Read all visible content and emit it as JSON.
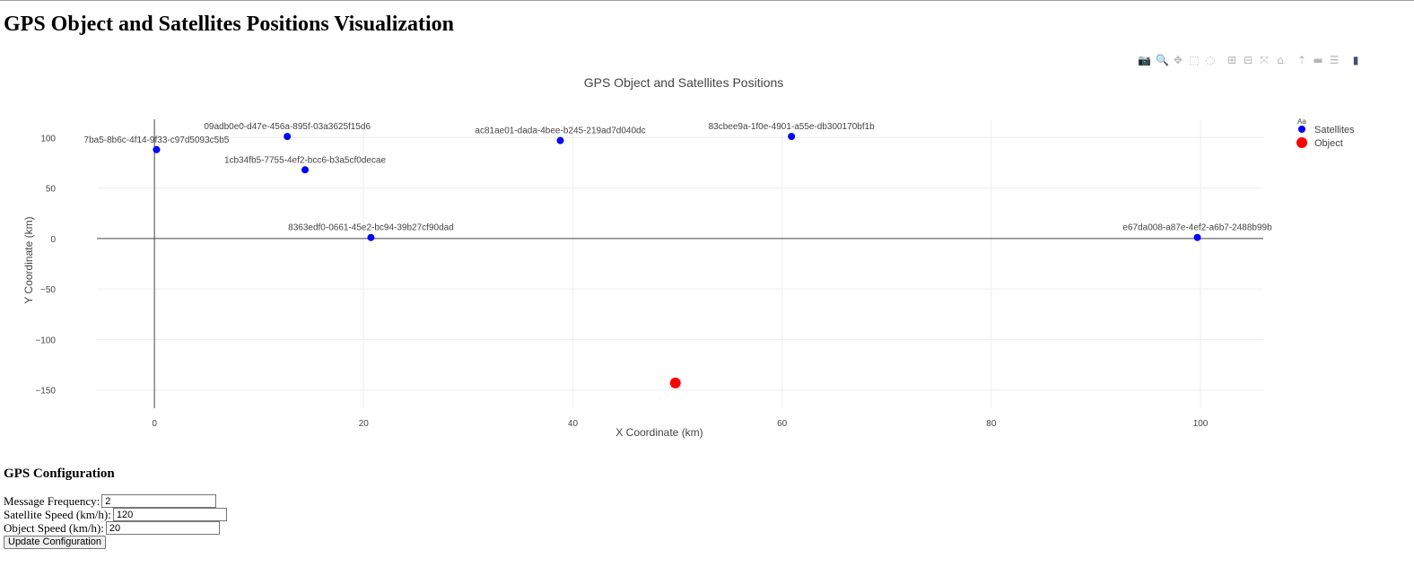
{
  "page": {
    "heading": "GPS Object and Satellites Positions Visualization"
  },
  "modebar": {
    "buttons": [
      {
        "name": "camera-icon",
        "glyph": "📷"
      },
      {
        "name": "zoom-icon",
        "glyph": "🔍"
      },
      {
        "name": "pan-icon",
        "glyph": "✥"
      },
      {
        "name": "box-select-icon",
        "glyph": "⬚"
      },
      {
        "name": "lasso-select-icon",
        "glyph": "◌"
      },
      {
        "name": "zoom-in-icon",
        "glyph": "⊞"
      },
      {
        "name": "zoom-out-icon",
        "glyph": "⊟"
      },
      {
        "name": "autoscale-icon",
        "glyph": "⤧"
      },
      {
        "name": "reset-axes-icon",
        "glyph": "⌂"
      },
      {
        "name": "spike-lines-icon",
        "glyph": "⇡"
      },
      {
        "name": "hover-closest-icon",
        "glyph": "▬"
      },
      {
        "name": "hover-compare-icon",
        "glyph": "☰"
      },
      {
        "name": "plotly-logo-icon",
        "glyph": "▮"
      }
    ]
  },
  "chart_data": {
    "type": "scatter",
    "title": "GPS Object and Satellites Positions",
    "xlabel": "X Coordinate (km)",
    "ylabel": "Y Coordinate (km)",
    "xlim": [
      -5.5,
      106
    ],
    "ylim": [
      -168,
      118
    ],
    "xticks": [
      0,
      20,
      40,
      60,
      80,
      100
    ],
    "yticks": [
      100,
      50,
      0,
      -50,
      -100,
      -150
    ],
    "grid": true,
    "legend_position": "top-right",
    "legend_title": "Aa",
    "series": [
      {
        "name": "Satellites",
        "color": "#0000ff",
        "points": [
          {
            "x": 0.2,
            "y": 88,
            "label": "7ba5-8b6c-4f14-9f33-c97d5093c5b5"
          },
          {
            "x": 12.7,
            "y": 101,
            "label": "09adb0e0-d47e-456a-895f-03a3625f15d6"
          },
          {
            "x": 14.4,
            "y": 68,
            "label": "1cb34fb5-7755-4ef2-bcc6-b3a5cf0decae"
          },
          {
            "x": 38.8,
            "y": 97,
            "label": "ac81ae01-dada-4bee-b245-219ad7d040dc"
          },
          {
            "x": 60.9,
            "y": 101,
            "label": "83cbee9a-1f0e-4901-a55e-db300170bf1b"
          },
          {
            "x": 20.7,
            "y": 1,
            "label": "8363edf0-0661-45e2-bc94-39b27cf90dad"
          },
          {
            "x": 99.7,
            "y": 1,
            "label": "e67da008-a87e-4ef2-a6b7-2488b99b"
          }
        ]
      },
      {
        "name": "Object",
        "color": "#ff0000",
        "points": [
          {
            "x": 49.8,
            "y": -143
          }
        ]
      }
    ]
  },
  "config": {
    "title": "GPS Configuration",
    "message_frequency_label": "Message Frequency:",
    "message_frequency_value": "2",
    "satellite_speed_label": "Satellite Speed (km/h):",
    "satellite_speed_value": "120",
    "object_speed_label": "Object Speed (km/h):",
    "object_speed_value": "20",
    "update_button": "Update Configuration"
  }
}
